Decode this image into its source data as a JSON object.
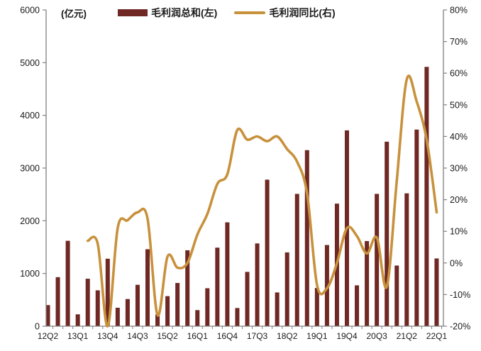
{
  "unit_note": "(亿元)",
  "legend": [
    {
      "label": "毛利润总和(左)",
      "swatch_color": "#6F2823"
    },
    {
      "label": "毛利润同比(右)",
      "swatch_color": "#C8913C"
    }
  ],
  "chart_data": {
    "type": "combo",
    "categories": [
      "12Q2",
      "12Q3",
      "12Q4",
      "13Q1",
      "13Q2",
      "13Q3",
      "13Q4",
      "14Q1",
      "14Q2",
      "14Q3",
      "14Q4",
      "15Q1",
      "15Q2",
      "15Q3",
      "15Q4",
      "16Q1",
      "16Q2",
      "16Q3",
      "16Q4",
      "17Q1",
      "17Q2",
      "17Q3",
      "17Q4",
      "18Q1",
      "18Q2",
      "18Q3",
      "18Q4",
      "19Q1",
      "19Q2",
      "19Q3",
      "19Q4",
      "20Q1",
      "20Q2",
      "20Q3",
      "20Q4",
      "21Q1",
      "21Q2",
      "21Q3",
      "21Q4",
      "22Q1"
    ],
    "x_tick_labels": [
      "12Q2",
      "13Q1",
      "13Q4",
      "14Q3",
      "15Q2",
      "16Q1",
      "16Q4",
      "17Q3",
      "18Q2",
      "19Q1",
      "19Q4",
      "20Q3",
      "21Q2",
      "22Q1"
    ],
    "x_label_every": 3,
    "series": [
      {
        "name": "毛利润总和(左)",
        "type": "bar",
        "axis": "left",
        "color": "#6F2823",
        "values": [
          400,
          930,
          1620,
          225,
          900,
          680,
          1280,
          350,
          515,
          785,
          1460,
          225,
          570,
          820,
          1440,
          305,
          720,
          1490,
          1970,
          345,
          1030,
          1570,
          2780,
          640,
          1400,
          2510,
          3340,
          725,
          1540,
          2325,
          3715,
          775,
          1615,
          2510,
          3500,
          1150,
          2520,
          3730,
          4920,
          1285
        ]
      },
      {
        "name": "毛利润同比(右)",
        "type": "line",
        "axis": "right",
        "color": "#C8913C",
        "values": [
          null,
          null,
          null,
          null,
          7,
          6,
          -20,
          11,
          13.5,
          16,
          14,
          -16.5,
          2,
          -1.5,
          0,
          9,
          15.5,
          25,
          28,
          42,
          39,
          40,
          38.5,
          40,
          36,
          32,
          22,
          -7,
          -8,
          0,
          11,
          8.5,
          3,
          8,
          -7.5,
          26,
          58,
          51,
          39,
          16
        ]
      }
    ],
    "left_axis": {
      "unit": "(亿元)",
      "min": 0,
      "max": 6000,
      "step": 1000,
      "tick_labels": [
        "0",
        "1000",
        "2000",
        "3000",
        "4000",
        "5000",
        "6000"
      ]
    },
    "right_axis": {
      "min": -20,
      "max": 80,
      "step": 10,
      "suffix": "%",
      "tick_labels": [
        "-20%",
        "-10%",
        "0%",
        "10%",
        "20%",
        "30%",
        "40%",
        "50%",
        "60%",
        "70%",
        "80%"
      ]
    },
    "grid": false,
    "legend_position": "top",
    "axis_color": "#808080",
    "text_color": "#1a1a1a"
  }
}
